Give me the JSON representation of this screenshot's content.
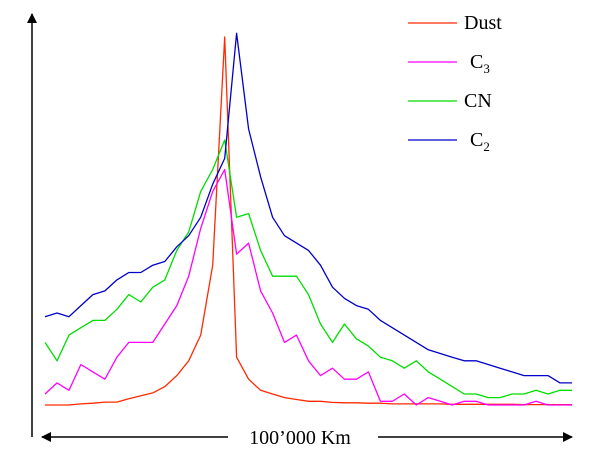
{
  "chart_data": {
    "type": "line",
    "title": "",
    "xlabel": "",
    "ylabel": "",
    "span_label": "100’000 Km",
    "legend_position": "top-right",
    "grid": false,
    "x": [
      0,
      1,
      2,
      3,
      4,
      5,
      6,
      7,
      8,
      9,
      10,
      11,
      12,
      13,
      14,
      15,
      16,
      17,
      18,
      19,
      20,
      21,
      22,
      23,
      24,
      25,
      26,
      27,
      28,
      29,
      30,
      31,
      32,
      33,
      34,
      35,
      36,
      37,
      38,
      39,
      40,
      41,
      42,
      43,
      44
    ],
    "ylim": [
      0,
      100
    ],
    "series": [
      {
        "name": "Dust",
        "name_main": "Dust",
        "name_sub": "",
        "color": "#ff2a00",
        "values": [
          0,
          0,
          0,
          0.3,
          0.5,
          0.8,
          0.8,
          1.7,
          2.5,
          3.3,
          5,
          8,
          12,
          19,
          38,
          100,
          13,
          7,
          4,
          3,
          2,
          1.5,
          1,
          1,
          0.7,
          0.6,
          0.6,
          0.5,
          0.5,
          0.3,
          0.3,
          0.3,
          0.3,
          0.3,
          0.2,
          0.2,
          0.2,
          0.2,
          0.2,
          0.2,
          0.1,
          0.1,
          0.1,
          0.1,
          0.1
        ]
      },
      {
        "name": "C3",
        "name_main": "C",
        "name_sub": "3",
        "color": "#ff00ff",
        "values": [
          3,
          6,
          4,
          11,
          9,
          7,
          13,
          17,
          17,
          17,
          22,
          27,
          35,
          48,
          58,
          64,
          41,
          44,
          31,
          25,
          17,
          19,
          12,
          8,
          10,
          7,
          7,
          9,
          1,
          1,
          3,
          0,
          2,
          1,
          0,
          1,
          1,
          0,
          0,
          0,
          0,
          1,
          0,
          0,
          0
        ]
      },
      {
        "name": "CN",
        "name_main": "CN",
        "name_sub": "",
        "color": "#00dd00",
        "values": [
          17,
          12,
          19,
          21,
          23,
          23,
          26,
          30,
          28,
          32,
          34,
          42,
          47,
          58,
          64,
          72,
          51,
          52,
          42,
          35,
          35,
          35,
          30,
          22,
          17,
          22,
          18,
          16,
          13,
          12,
          10,
          12,
          9,
          7,
          5,
          3,
          3,
          2,
          2,
          3,
          3,
          4,
          3,
          4,
          4
        ]
      },
      {
        "name": "C2",
        "name_main": "C",
        "name_sub": "2",
        "color": "#0000cc",
        "values": [
          24,
          25,
          24,
          27,
          30,
          31,
          34,
          36,
          36,
          38,
          39,
          43,
          46,
          51,
          60,
          67,
          101,
          75,
          62,
          51,
          46,
          44,
          42,
          38,
          32,
          29,
          27,
          26,
          23,
          21,
          19,
          17,
          15,
          14,
          13,
          12,
          12,
          11,
          10,
          9,
          8,
          8,
          8,
          6,
          6
        ]
      }
    ]
  }
}
